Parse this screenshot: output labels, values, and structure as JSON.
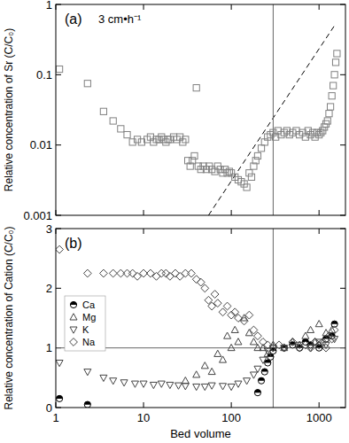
{
  "chart_data": [
    {
      "type": "scatter",
      "title": "(a)",
      "subtitle": "3 cm•h⁻¹",
      "y_label": "Relative concentration of Sr (C/C₀)",
      "log": true,
      "tick_labels": "y",
      "xlim": [
        1,
        2000
      ],
      "xticks": [
        1,
        10,
        100,
        1000
      ],
      "ylim": [
        0.001,
        1
      ],
      "yticks": [
        0.001,
        0.01,
        0.1,
        1
      ],
      "series": [
        {
          "type": "scatter",
          "marker": "square",
          "color": "#808080",
          "x": [
            1.1,
            2.3,
            3.5,
            4.5,
            5.5,
            6.5,
            7.5,
            8.5,
            9.5,
            11,
            12,
            13,
            14,
            15,
            16,
            17,
            18,
            19,
            20,
            22,
            24,
            26,
            28,
            30,
            32,
            34,
            36,
            38,
            40,
            42,
            45,
            48,
            52,
            56,
            60,
            65,
            70,
            75,
            80,
            85,
            90,
            95,
            100,
            110,
            120,
            130,
            140,
            150,
            160,
            170,
            180,
            190,
            200,
            220,
            240,
            260,
            280,
            300,
            320,
            340,
            370,
            400,
            430,
            460,
            500,
            550,
            600,
            650,
            700,
            750,
            800,
            850,
            900,
            950,
            1000,
            1050,
            1100,
            1150,
            1200,
            1250,
            1300,
            1350,
            1400,
            1450,
            1500,
            1550,
            1600
          ],
          "values": [
            0.12,
            0.075,
            0.03,
            0.022,
            0.017,
            0.014,
            0.011,
            0.012,
            0.011,
            0.012,
            0.013,
            0.011,
            0.012,
            0.012,
            0.013,
            0.012,
            0.011,
            0.012,
            0.012,
            0.013,
            0.012,
            0.013,
            0.011,
            0.012,
            0.006,
            0.005,
            0.006,
            0.007,
            0.065,
            0.005,
            0.0045,
            0.005,
            0.0045,
            0.005,
            0.0045,
            0.0042,
            0.005,
            0.0045,
            0.004,
            0.0045,
            0.004,
            0.0042,
            0.004,
            0.0035,
            0.0032,
            0.003,
            0.0028,
            0.0025,
            0.004,
            0.0035,
            0.005,
            0.006,
            0.007,
            0.009,
            0.011,
            0.013,
            0.014,
            0.015,
            0.013,
            0.016,
            0.014,
            0.015,
            0.016,
            0.014,
            0.015,
            0.016,
            0.014,
            0.015,
            0.013,
            0.016,
            0.014,
            0.015,
            0.013,
            0.015,
            0.014,
            0.015,
            0.016,
            0.018,
            0.02,
            0.022,
            0.028,
            0.035,
            0.05,
            0.07,
            0.1,
            0.15,
            0.2
          ]
        },
        {
          "type": "line",
          "line_style": "dashed",
          "marker": "none",
          "color": "#000000",
          "x": [
            55,
            1500
          ],
          "values": [
            0.001,
            0.5
          ]
        },
        {
          "type": "line",
          "line_style": "solid",
          "marker": "none",
          "color": "#666666",
          "x": [
            300,
            300
          ],
          "values": [
            0.001,
            1
          ]
        }
      ]
    },
    {
      "type": "scatter",
      "title": "(b)",
      "y_label": "Relative concentration of Cation (C/C₀)",
      "x_label": "Bed volume",
      "log": "x",
      "legend": "center left",
      "xlim": [
        1,
        2000
      ],
      "xticks": [
        1,
        10,
        100,
        1000
      ],
      "ylim": [
        0,
        3
      ],
      "yticks": [
        0,
        1,
        2,
        3
      ],
      "series": [
        {
          "name": "Ca",
          "type": "scatter",
          "marker": "circle-half",
          "color": "#000000",
          "x": [
            1.1,
            2.3,
            200,
            220,
            240,
            260,
            280,
            300,
            400,
            500,
            600,
            700,
            800,
            1000,
            1200,
            1400,
            1500
          ],
          "values": [
            0.15,
            0.05,
            0.25,
            0.45,
            0.6,
            0.75,
            0.85,
            0.95,
            1.0,
            1.05,
            1.0,
            1.1,
            1.05,
            1.0,
            1.15,
            1.2,
            1.4
          ]
        },
        {
          "name": "Mg",
          "type": "scatter",
          "marker": "triangle-up",
          "color": "#444444",
          "x": [
            30,
            40,
            50,
            60,
            70,
            80,
            90,
            100,
            110,
            120,
            140,
            160,
            180,
            200,
            230,
            260,
            300,
            400,
            500,
            600,
            700,
            800,
            900,
            1000,
            1200,
            1400
          ],
          "values": [
            0.45,
            0.55,
            0.7,
            0.6,
            0.9,
            0.8,
            1.2,
            1.0,
            1.3,
            1.1,
            1.5,
            1.25,
            1.1,
            1.0,
            1.0,
            0.9,
            1.05,
            1.0,
            1.1,
            1.05,
            1.2,
            1.3,
            1.1,
            1.4,
            1.25,
            1.3
          ]
        },
        {
          "name": "K",
          "type": "scatter",
          "marker": "triangle-down",
          "color": "#444444",
          "x": [
            1.1,
            2.3,
            3.5,
            4.5,
            6,
            8,
            10,
            13,
            16,
            20,
            25,
            30,
            40,
            50,
            60,
            80,
            100,
            120,
            150,
            180,
            200,
            230,
            260,
            300,
            400,
            600,
            800,
            1000,
            1200,
            1500
          ],
          "values": [
            0.75,
            0.6,
            0.5,
            0.45,
            0.42,
            0.4,
            0.4,
            0.38,
            0.4,
            0.38,
            0.37,
            0.36,
            0.35,
            0.35,
            0.37,
            0.36,
            0.35,
            0.4,
            0.45,
            0.55,
            0.65,
            0.8,
            0.95,
            1.0,
            1.0,
            1.05,
            1.0,
            1.1,
            1.05,
            1.15
          ]
        },
        {
          "name": "Na",
          "type": "scatter",
          "marker": "diamond",
          "color": "#444444",
          "x": [
            1.1,
            2.3,
            3.5,
            4.5,
            5.5,
            6.5,
            7.5,
            8.5,
            10,
            12,
            14,
            16,
            18,
            20,
            23,
            26,
            30,
            35,
            40,
            45,
            50,
            55,
            60,
            65,
            70,
            80,
            90,
            100,
            110,
            120,
            140,
            160,
            180,
            200,
            230,
            260,
            300,
            350,
            400,
            500,
            600,
            700,
            800,
            900,
            1000,
            1100,
            1200,
            1300,
            1400,
            1500
          ],
          "values": [
            2.65,
            2.25,
            2.25,
            2.25,
            2.25,
            2.25,
            2.25,
            2.2,
            2.25,
            2.25,
            2.2,
            2.25,
            2.25,
            2.2,
            2.25,
            2.2,
            2.25,
            2.25,
            2.15,
            2.1,
            2.0,
            1.8,
            1.7,
            1.9,
            1.75,
            1.6,
            1.7,
            1.55,
            1.6,
            1.5,
            1.45,
            1.55,
            1.3,
            1.2,
            1.1,
            1.05,
            1.0,
            1.05,
            1.0,
            1.1,
            1.0,
            1.05,
            1.0,
            1.1,
            1.05,
            1.1,
            1.0,
            1.2,
            1.15,
            1.3
          ]
        },
        {
          "type": "line",
          "line_style": "solid",
          "marker": "none",
          "color": "#666666",
          "x": [
            300,
            300
          ],
          "values": [
            0,
            3
          ]
        },
        {
          "type": "line",
          "line_style": "solid",
          "marker": "none",
          "color": "#666666",
          "x": [
            1,
            2000
          ],
          "values": [
            1,
            1
          ]
        }
      ]
    }
  ]
}
